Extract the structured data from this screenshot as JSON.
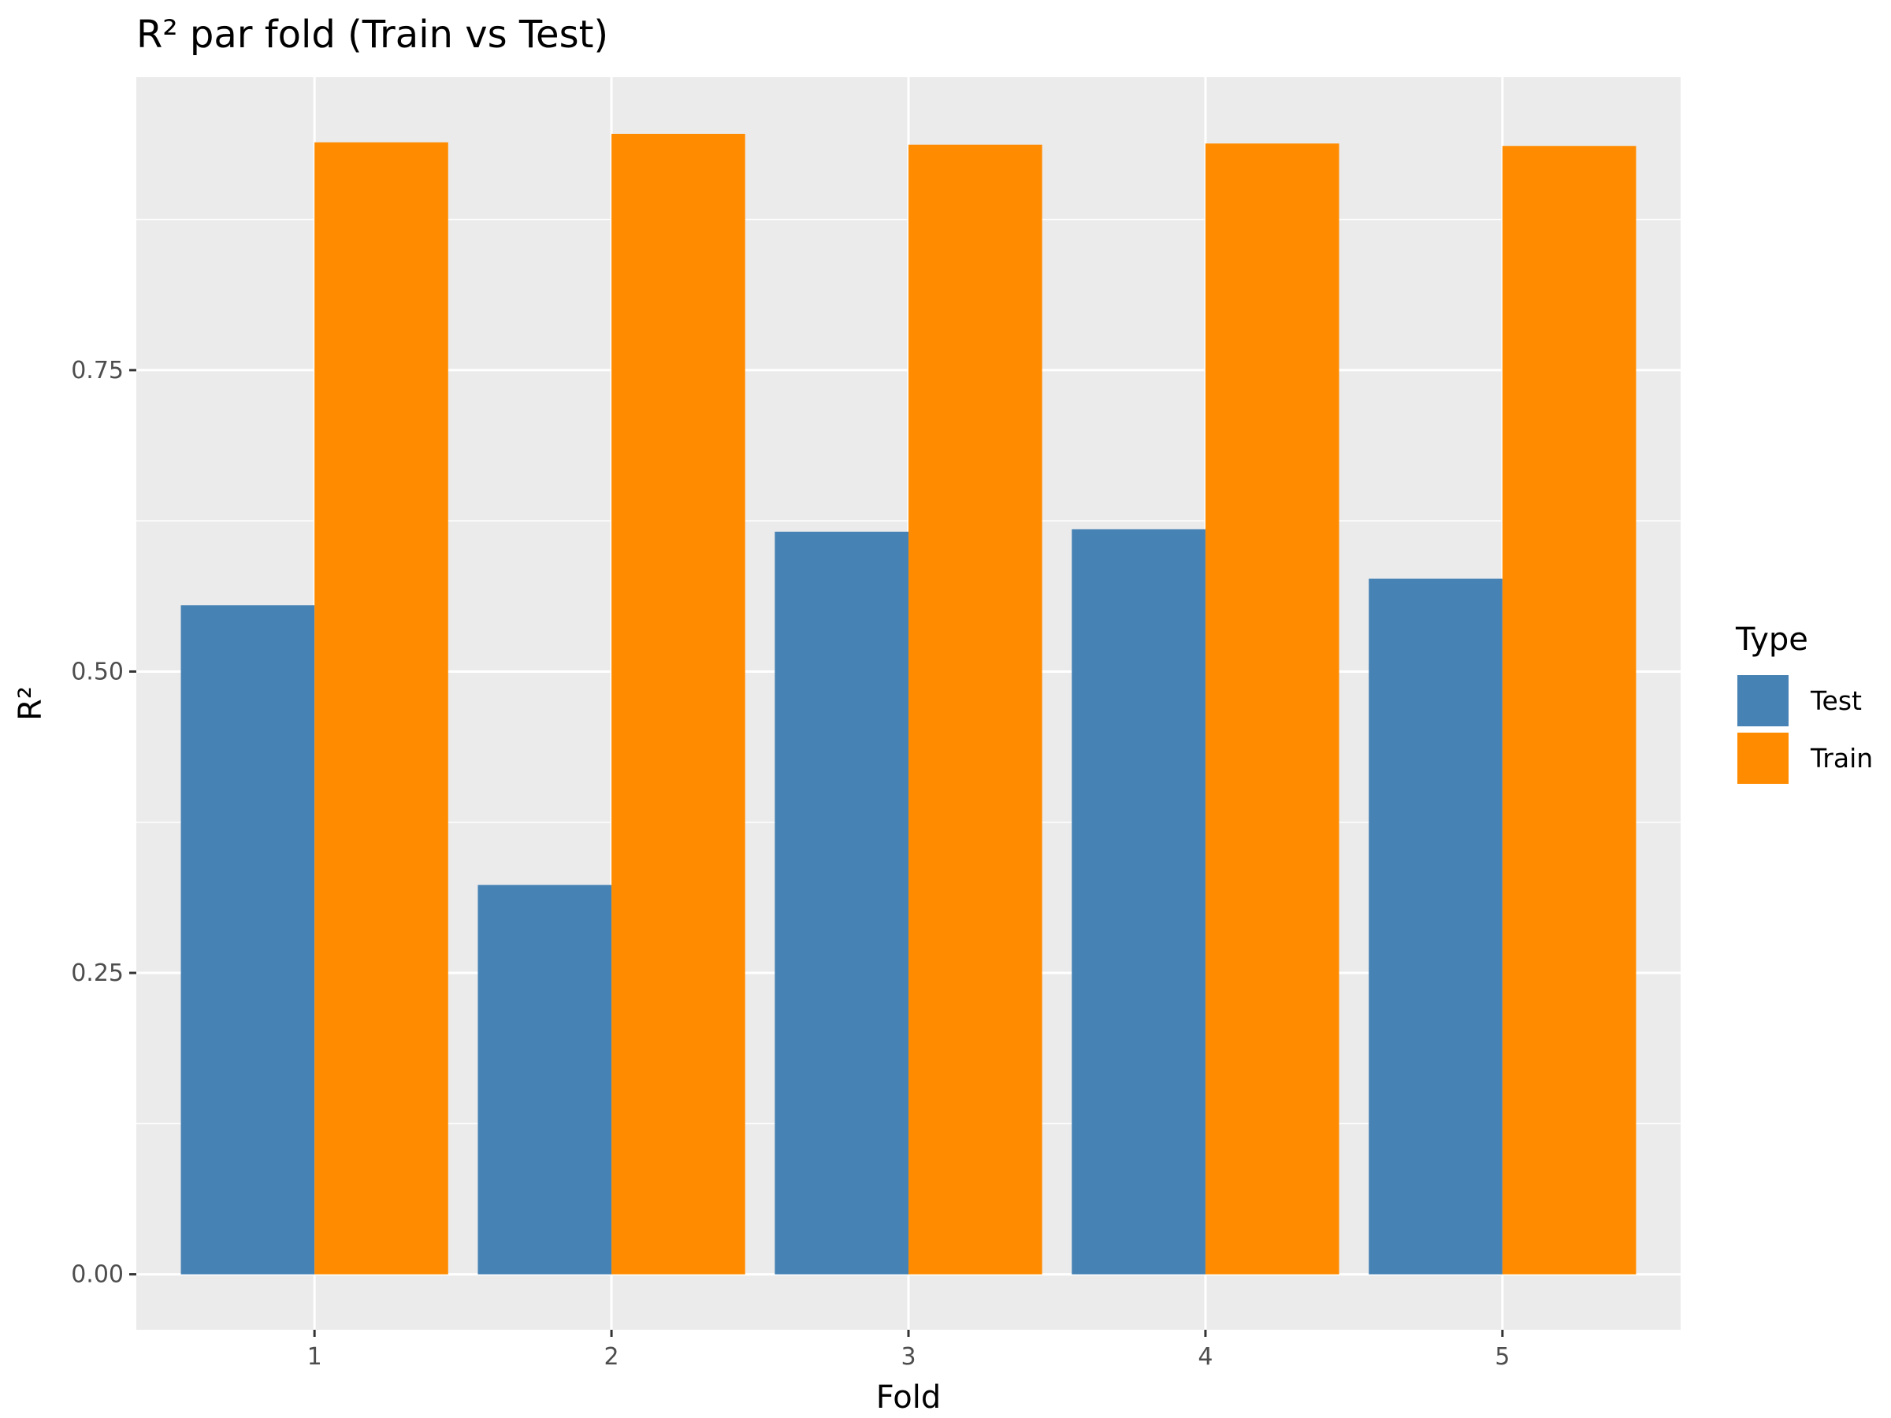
{
  "chart_data": {
    "type": "bar",
    "title": "R² par fold (Train vs Test)",
    "xlabel": "Fold",
    "ylabel": "R²",
    "categories": [
      "1",
      "2",
      "3",
      "4",
      "5"
    ],
    "series": [
      {
        "name": "Test",
        "color": "#4682B4",
        "values": [
          0.555,
          0.323,
          0.616,
          0.618,
          0.577
        ]
      },
      {
        "name": "Train",
        "color": "#FF8C00",
        "values": [
          0.939,
          0.946,
          0.937,
          0.938,
          0.936
        ]
      }
    ],
    "ylim": [
      -0.046,
      0.993
    ],
    "yticks": [
      0.0,
      0.25,
      0.5,
      0.75
    ],
    "ytick_labels": [
      "0.00",
      "0.25",
      "0.50",
      "0.75"
    ],
    "grid": true,
    "legend": {
      "title": "Type",
      "position": "right"
    },
    "panel_background": "#EBEBEB",
    "grid_color": "#FFFFFF"
  }
}
